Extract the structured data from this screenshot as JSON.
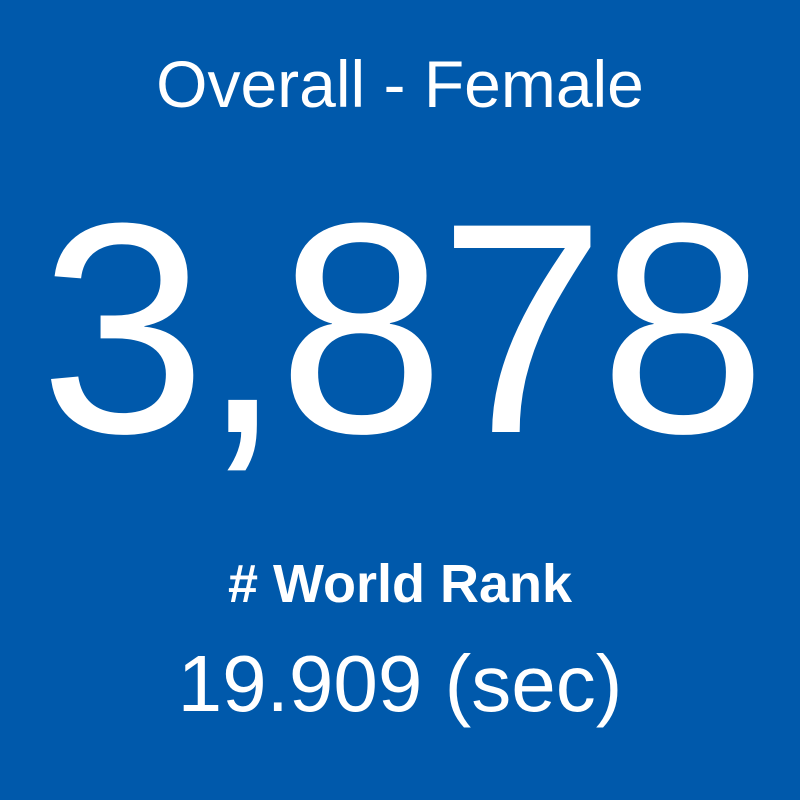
{
  "title": "Overall - Female",
  "value": "3,878",
  "label": "# World Rank",
  "time": "19.909 (sec)"
}
